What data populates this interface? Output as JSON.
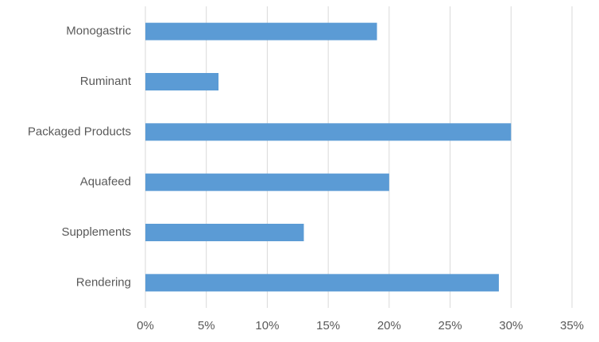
{
  "chart_data": {
    "type": "hbar",
    "categories": [
      "Monogastric",
      "Ruminant",
      "Packaged Products",
      "Aquafeed",
      "Supplements",
      "Rendering"
    ],
    "values": [
      19,
      6,
      30,
      20,
      13,
      29
    ],
    "color": "#5b9bd5",
    "xlim": [
      0,
      35
    ],
    "xticks": [
      {
        "value": 0,
        "label": "0%"
      },
      {
        "value": 5,
        "label": "5%"
      },
      {
        "value": 10,
        "label": "10%"
      },
      {
        "value": 15,
        "label": "15%"
      },
      {
        "value": 20,
        "label": "20%"
      },
      {
        "value": 25,
        "label": "25%"
      },
      {
        "value": 30,
        "label": "30%"
      },
      {
        "value": 35,
        "label": "35%"
      }
    ],
    "grid": true
  }
}
